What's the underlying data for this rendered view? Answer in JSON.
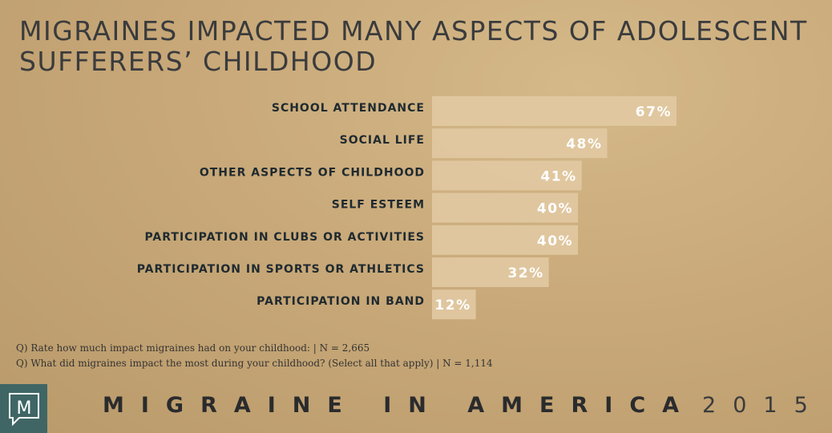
{
  "title": {
    "line1": "MIGRAINES IMPACTED MANY ASPECTS OF ADOLESCENT",
    "line2": "SUFFERERS’ CHILDHOOD"
  },
  "chart_data": {
    "type": "bar",
    "orientation": "horizontal",
    "categories": [
      "SCHOOL ATTENDANCE",
      "SOCIAL LIFE",
      "OTHER ASPECTS OF CHILDHOOD",
      "SELF ESTEEM",
      "PARTICIPATION IN CLUBS OR ACTIVITIES",
      "PARTICIPATION IN SPORTS OR ATHLETICS",
      "PARTICIPATION IN BAND"
    ],
    "values": [
      67,
      48,
      41,
      40,
      40,
      32,
      12
    ],
    "value_labels": [
      "67%",
      "48%",
      "41%",
      "40%",
      "40%",
      "32%",
      "12%"
    ],
    "xlim": [
      0,
      100
    ],
    "grid": false,
    "bar_color": "#e1c9a2"
  },
  "footnotes": {
    "q1": "Q) Rate how much impact migraines had on your childhood: | N = 2,665",
    "q2": "Q) What did migraines impact the most during your childhood? (Select all that apply) | N = 1,114"
  },
  "footer": {
    "logo_letter": "M",
    "brand_bold": "MIGRAINE IN AMERICA",
    "brand_year": "2015",
    "logo_bg": "#3f6665"
  }
}
